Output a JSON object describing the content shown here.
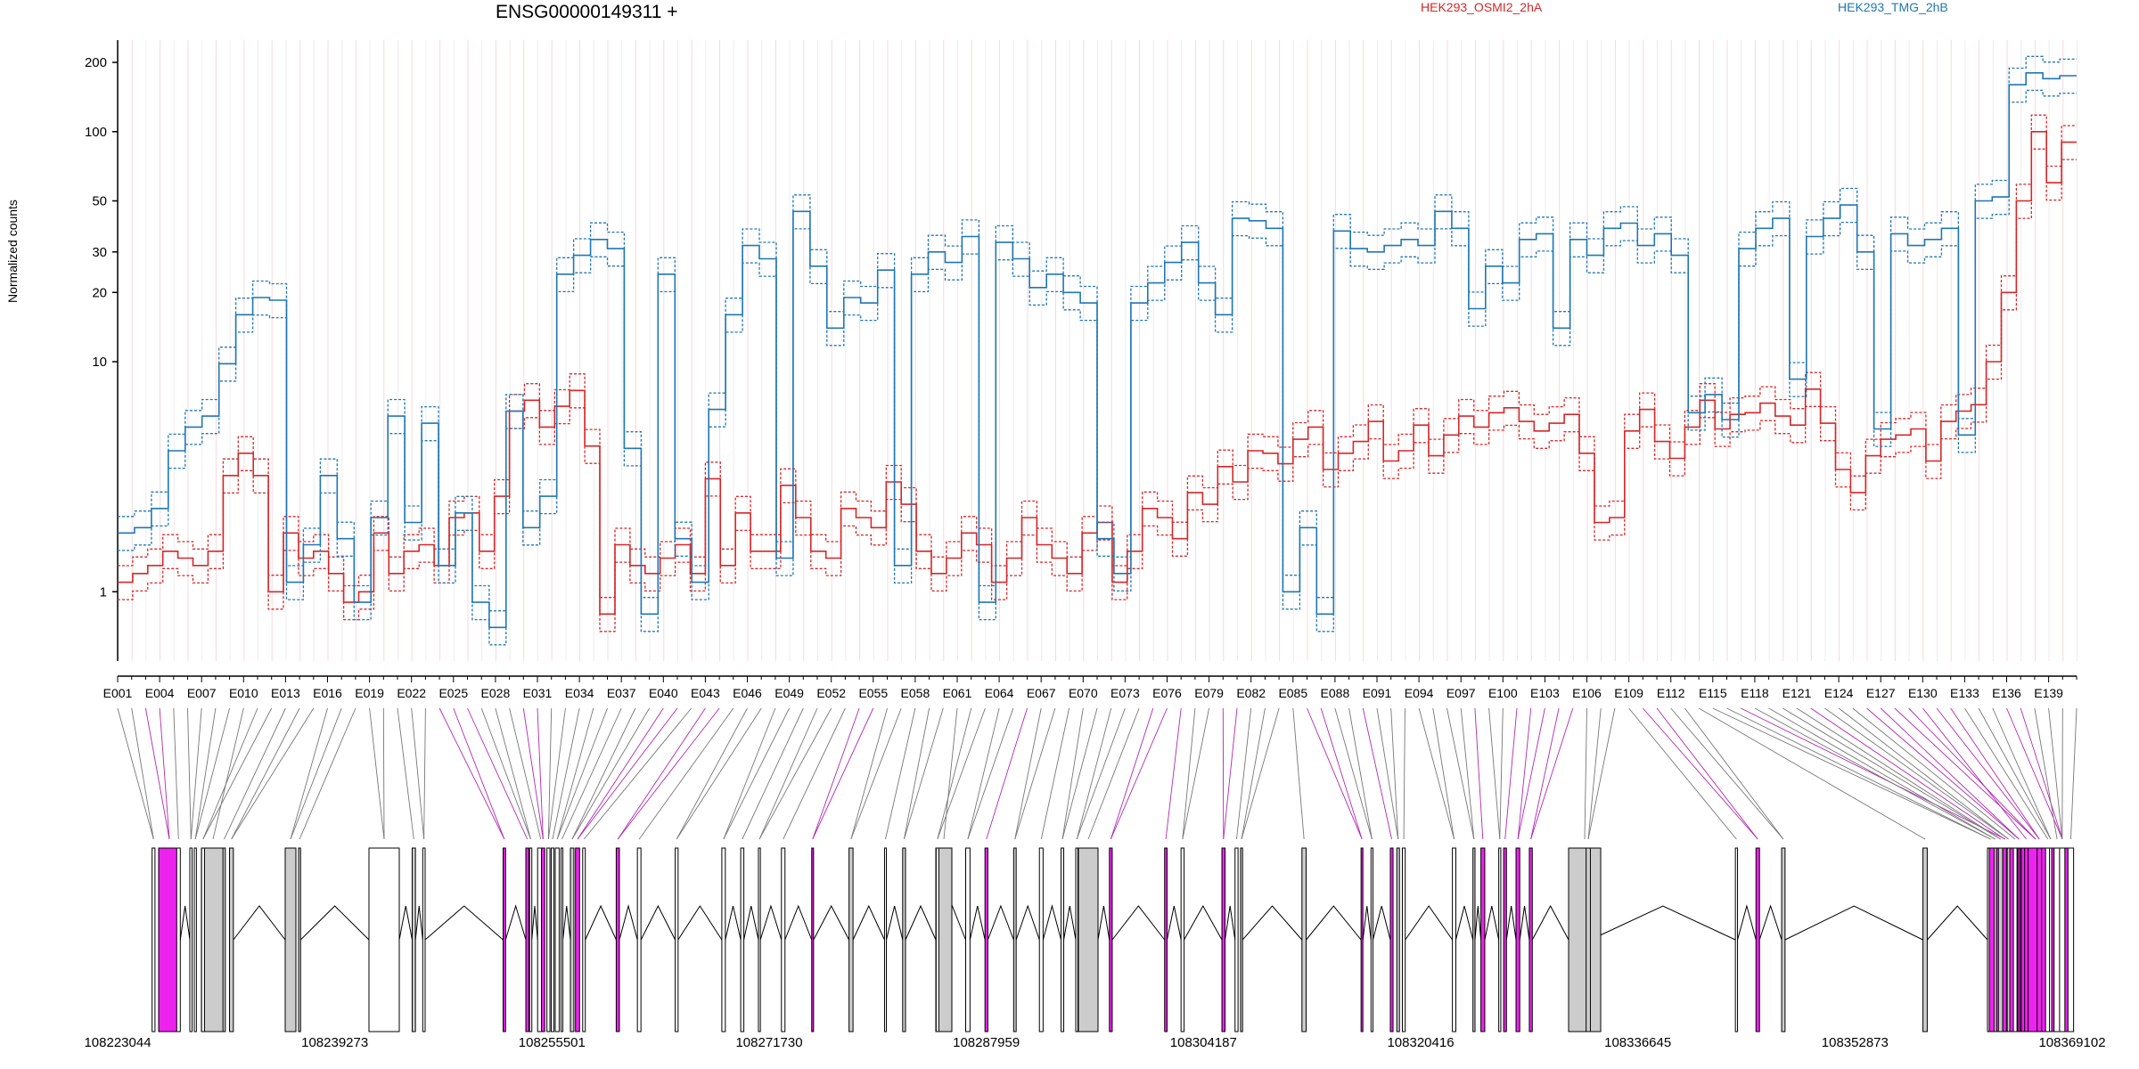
{
  "header": {
    "title": "ENSG00000149311 +"
  },
  "legend": [
    {
      "name": "HEK293_OSMI2_2hA",
      "color": "#d62728"
    },
    {
      "name": "HEK293_TMG_2hB",
      "color": "#1f77b4"
    }
  ],
  "axes": {
    "ylabel": "Normalized counts"
  },
  "chart_data": {
    "type": "line",
    "title": "ENSG00000149311 +",
    "xlabel": "",
    "ylabel": "Normalized counts",
    "y_scale": "log",
    "ylim": [
      0.5,
      250
    ],
    "y_ticks": [
      1,
      10,
      20,
      30,
      50,
      100,
      200
    ],
    "grid": "vertical exon boundaries",
    "legend_position": "top",
    "exon_tick_labels": [
      "E001",
      "E004",
      "E007",
      "E010",
      "E013",
      "E016",
      "E019",
      "E022",
      "E025",
      "E028",
      "E031",
      "E034",
      "E037",
      "E040",
      "E043",
      "E046",
      "E049",
      "E052",
      "E055",
      "E058",
      "E061",
      "E064",
      "E067",
      "E070",
      "E073",
      "E076",
      "E079",
      "E082",
      "E085",
      "E088",
      "E091",
      "E094",
      "E097",
      "E100",
      "E103",
      "E106",
      "E109",
      "E112",
      "E115",
      "E118",
      "E121",
      "E124",
      "E127",
      "E130",
      "E133",
      "E136",
      "E139"
    ],
    "genomic_tick_labels": [
      "108223044",
      "108239273",
      "108255501",
      "108271730",
      "108287959",
      "108304187",
      "108320416",
      "108336645",
      "108352873",
      "108369102"
    ],
    "series": [
      {
        "name": "HEK293_OSMI2_2hA",
        "color": "#d62728",
        "values": [
          1.1,
          1.2,
          1.3,
          1.5,
          1.4,
          1.3,
          1.5,
          3.2,
          4.0,
          3.2,
          1.0,
          1.8,
          1.4,
          1.5,
          1.2,
          0.9,
          1.0,
          1.8,
          1.2,
          1.5,
          1.6,
          1.3,
          2.1,
          2.2,
          1.5,
          2.6,
          6.1,
          6.8,
          5.2,
          6.4,
          7.5,
          4.3,
          0.8,
          1.6,
          1.3,
          1.2,
          1.4,
          1.6,
          1.2,
          3.1,
          1.3,
          2.2,
          1.5,
          1.5,
          2.9,
          2.1,
          1.5,
          1.4,
          2.3,
          2.1,
          1.9,
          3.0,
          2.4,
          1.5,
          1.2,
          1.4,
          1.8,
          1.6,
          1.1,
          1.4,
          2.1,
          1.6,
          1.4,
          1.2,
          1.8,
          2.0,
          1.1,
          1.5,
          2.3,
          2.1,
          1.7,
          2.7,
          2.4,
          3.5,
          3.0,
          4.1,
          4.0,
          3.6,
          4.6,
          5.2,
          3.4,
          4.0,
          4.5,
          5.5,
          3.7,
          4.1,
          5.3,
          3.9,
          4.8,
          5.8,
          5.2,
          6.0,
          6.3,
          5.5,
          5.0,
          5.4,
          5.9,
          4.0,
          2.0,
          2.1,
          5.0,
          6.2,
          4.5,
          3.8,
          5.2,
          6.8,
          5.1,
          5.9,
          6.0,
          6.6,
          5.8,
          5.3,
          7.6,
          5.4,
          3.4,
          2.7,
          3.9,
          4.6,
          4.8,
          5.1,
          3.7,
          5.5,
          6.1,
          6.5,
          10.0,
          20.0,
          50.0,
          100.0,
          60.0,
          90.0
        ]
      },
      {
        "name": "HEK293_TMG_2hB",
        "color": "#1f77b4",
        "values": [
          1.8,
          1.9,
          2.3,
          4.1,
          5.2,
          5.8,
          9.8,
          16.0,
          19.0,
          18.5,
          1.1,
          1.6,
          3.2,
          1.7,
          0.9,
          2.1,
          5.8,
          2.0,
          5.4,
          1.3,
          2.2,
          0.9,
          0.7,
          6.1,
          1.9,
          2.6,
          24.0,
          29.0,
          34.0,
          31.0,
          4.2,
          0.8,
          24.0,
          1.7,
          1.1,
          6.2,
          16.0,
          32.0,
          28.0,
          1.4,
          45.0,
          26.0,
          14.0,
          19.0,
          18.0,
          25.0,
          1.3,
          24.0,
          30.0,
          27.0,
          35.0,
          0.9,
          33.0,
          28.0,
          21.0,
          24.0,
          20.0,
          18.0,
          1.7,
          1.2,
          18.0,
          22.0,
          27.0,
          33.0,
          22.0,
          16.0,
          42.0,
          41.0,
          38.0,
          1.0,
          1.9,
          0.8,
          37.0,
          31.0,
          30.0,
          32.0,
          34.0,
          32.0,
          45.0,
          38.0,
          17.0,
          26.0,
          22.0,
          34.0,
          36.0,
          14.0,
          34.0,
          29.0,
          38.0,
          40.0,
          32.0,
          36.0,
          29.0,
          6.0,
          7.2,
          5.6,
          31.0,
          38.0,
          42.0,
          8.4,
          35.0,
          42.0,
          48.0,
          30.0,
          5.1,
          36.0,
          32.0,
          34.0,
          38.0,
          4.8,
          50.0,
          52.0,
          160.0,
          180.0,
          170.0,
          175.0
        ]
      }
    ]
  }
}
